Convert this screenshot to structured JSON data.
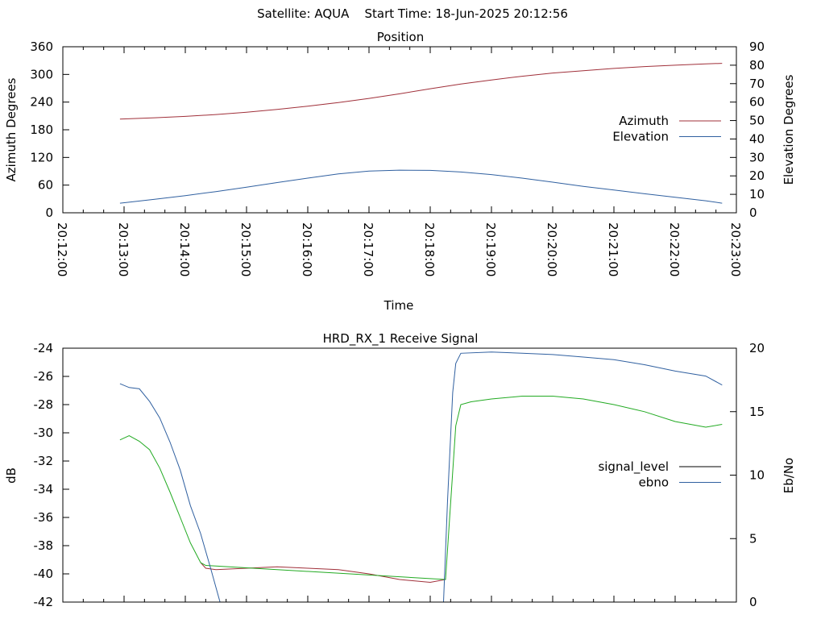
{
  "header": {
    "title": "Satellite: AQUA    Start Time: 18-Jun-2025 20:12:56"
  },
  "chart_data": [
    {
      "type": "line",
      "title": "Position",
      "xlabel": "Time",
      "ylabel": "Azimuth Degrees",
      "y2label": "Elevation Degrees",
      "xlim": [
        "20:12:00",
        "20:23:00"
      ],
      "ylim": [
        0,
        360
      ],
      "y2lim": [
        0,
        90
      ],
      "x_ticks": [
        "20:12:00",
        "20:13:00",
        "20:14:00",
        "20:15:00",
        "20:16:00",
        "20:17:00",
        "20:18:00",
        "20:19:00",
        "20:20:00",
        "20:21:00",
        "20:22:00",
        "20:23:00"
      ],
      "y_ticks": [
        "0",
        "60",
        "120",
        "180",
        "240",
        "300",
        "360"
      ],
      "y2_ticks": [
        "0",
        "10",
        "20",
        "30",
        "40",
        "50",
        "60",
        "70",
        "80",
        "90"
      ],
      "legend_position": "right",
      "series": [
        {
          "name": "Azimuth",
          "axis": "y",
          "color": "#a0303a",
          "x": [
            "20:12:56",
            "20:13:30",
            "20:14:00",
            "20:14:30",
            "20:15:00",
            "20:15:30",
            "20:16:00",
            "20:16:30",
            "20:17:00",
            "20:17:30",
            "20:18:00",
            "20:18:30",
            "20:19:00",
            "20:19:30",
            "20:20:00",
            "20:20:30",
            "20:21:00",
            "20:21:30",
            "20:22:00",
            "20:22:30",
            "20:22:46"
          ],
          "values": [
            203,
            206,
            209,
            213,
            218,
            224,
            231,
            239,
            248,
            258,
            269,
            279,
            288,
            296,
            303,
            308,
            313,
            317,
            320,
            323,
            324
          ]
        },
        {
          "name": "Elevation",
          "axis": "y2",
          "color": "#3060a0",
          "x": [
            "20:12:56",
            "20:13:30",
            "20:14:00",
            "20:14:30",
            "20:15:00",
            "20:15:30",
            "20:16:00",
            "20:16:30",
            "20:17:00",
            "20:17:30",
            "20:18:00",
            "20:18:30",
            "20:19:00",
            "20:19:30",
            "20:20:00",
            "20:20:30",
            "20:21:00",
            "20:21:30",
            "20:22:00",
            "20:22:30",
            "20:22:46"
          ],
          "values": [
            5.2,
            7.3,
            9.3,
            11.5,
            13.9,
            16.4,
            18.8,
            21.1,
            22.6,
            23.1,
            23.0,
            22.1,
            20.7,
            18.8,
            16.6,
            14.3,
            12.3,
            10.3,
            8.4,
            6.5,
            5.2
          ]
        }
      ]
    },
    {
      "type": "line",
      "title": "HRD_RX_1 Receive Signal",
      "xlabel": "",
      "ylabel": "dB",
      "y2label": "Eb/No",
      "xlim": [
        "20:12:00",
        "20:23:00"
      ],
      "ylim": [
        -42,
        -24
      ],
      "y2lim": [
        0,
        20
      ],
      "y_ticks": [
        "-42",
        "-40",
        "-38",
        "-36",
        "-34",
        "-32",
        "-30",
        "-28",
        "-26",
        "-24"
      ],
      "y2_ticks": [
        "0",
        "5",
        "10",
        "15",
        "20"
      ],
      "legend_position": "right",
      "series": [
        {
          "name": "signal_level",
          "axis": "y",
          "color": "#a0303a",
          "x": [
            "20:14:15",
            "20:14:20",
            "20:14:30",
            "20:15:00",
            "20:15:30",
            "20:16:00",
            "20:16:30",
            "20:17:00",
            "20:17:30",
            "20:18:00",
            "20:18:15"
          ],
          "values": [
            -39.2,
            -39.6,
            -39.7,
            -39.6,
            -39.5,
            -39.6,
            -39.7,
            -40.0,
            -40.4,
            -40.6,
            -40.4
          ]
        },
        {
          "name": "",
          "axis": "y",
          "color": "#22aa22",
          "x": [
            "20:12:56",
            "20:13:05",
            "20:13:15",
            "20:13:25",
            "20:13:35",
            "20:13:45",
            "20:13:55",
            "20:14:05",
            "20:14:15",
            "20:14:20",
            "20:18:15",
            "20:18:20",
            "20:18:25",
            "20:18:30",
            "20:18:40",
            "20:19:00",
            "20:19:30",
            "20:20:00",
            "20:20:30",
            "20:21:00",
            "20:21:30",
            "20:22:00",
            "20:22:30",
            "20:22:46"
          ],
          "values": [
            -30.5,
            -30.2,
            -30.6,
            -31.2,
            -32.5,
            -34.2,
            -36.0,
            -37.8,
            -39.2,
            -39.4,
            -40.4,
            -35.0,
            -29.5,
            -28.0,
            -27.8,
            -27.6,
            -27.4,
            -27.4,
            -27.6,
            -28.0,
            -28.5,
            -29.2,
            -29.6,
            -29.4
          ]
        },
        {
          "name": "ebno",
          "axis": "y2",
          "color": "#3060a0",
          "x": [
            "20:12:56",
            "20:13:05",
            "20:13:15",
            "20:13:25",
            "20:13:35",
            "20:13:45",
            "20:13:55",
            "20:14:05",
            "20:14:15",
            "20:14:25",
            "20:14:34",
            "20:18:13",
            "20:18:17",
            "20:18:22",
            "20:18:25",
            "20:18:30",
            "20:19:00",
            "20:19:30",
            "20:20:00",
            "20:20:30",
            "20:21:00",
            "20:21:30",
            "20:22:00",
            "20:22:30",
            "20:22:46"
          ],
          "values": [
            17.2,
            16.9,
            16.8,
            15.8,
            14.5,
            12.6,
            10.4,
            7.6,
            5.4,
            2.6,
            0.0,
            0.0,
            8.0,
            16.5,
            18.8,
            19.6,
            19.7,
            19.6,
            19.5,
            19.3,
            19.1,
            18.7,
            18.2,
            17.8,
            17.1
          ]
        }
      ]
    }
  ]
}
